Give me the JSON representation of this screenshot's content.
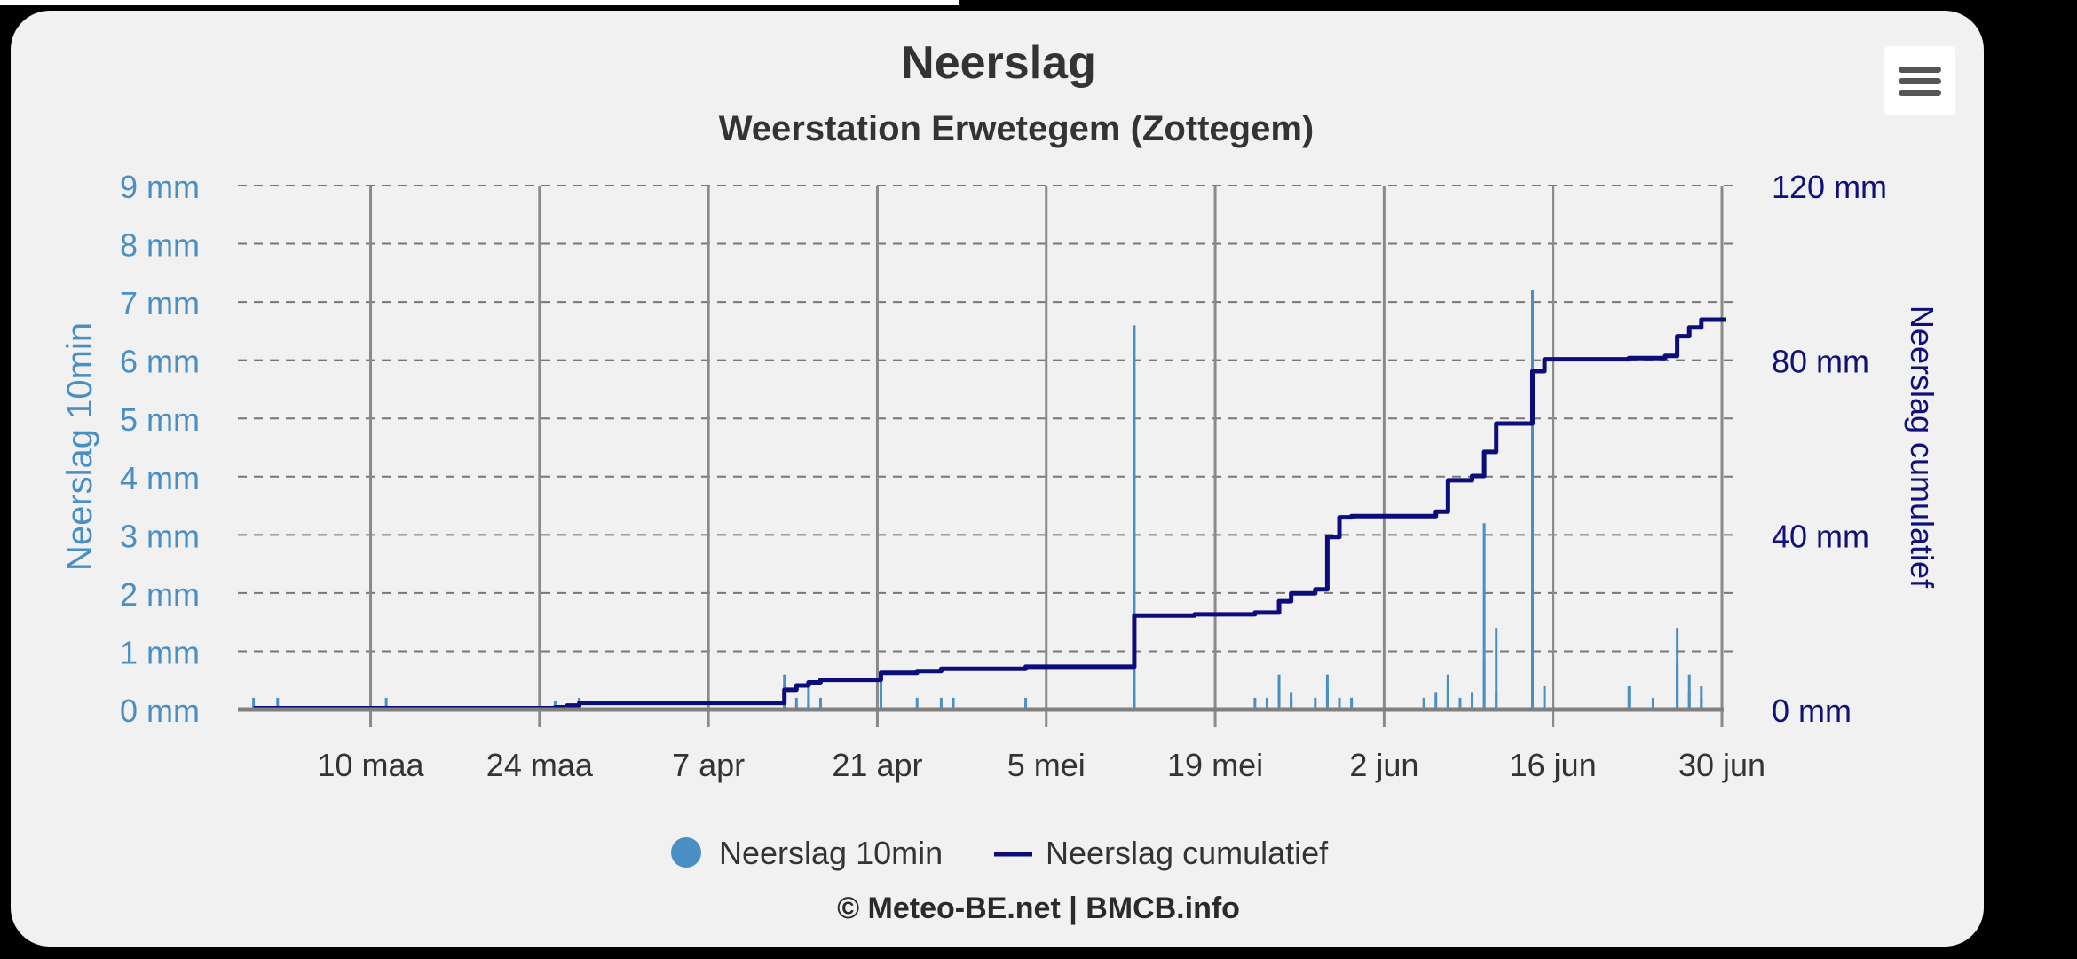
{
  "menu": {
    "icon": "hamburger-menu-icon"
  },
  "footer": {
    "credit": "© Meteo-BE.net | BMCB.info"
  },
  "chart_data": {
    "type": "bar+line",
    "title": "Neerslag",
    "subtitle": "Weerstation Erwetegem (Zottegem)",
    "x_axis": {
      "type": "datetime",
      "range": [
        "2025-02-27",
        "2025-06-30"
      ],
      "ticks": [
        {
          "label": "10 maa",
          "date": "2025-03-10"
        },
        {
          "label": "24 maa",
          "date": "2025-03-24"
        },
        {
          "label": "7 apr",
          "date": "2025-04-07"
        },
        {
          "label": "21 apr",
          "date": "2025-04-21"
        },
        {
          "label": "5 mei",
          "date": "2025-05-05"
        },
        {
          "label": "19 mei",
          "date": "2025-05-19"
        },
        {
          "label": "2 jun",
          "date": "2025-06-02"
        },
        {
          "label": "16 jun",
          "date": "2025-06-16"
        },
        {
          "label": "30 jun",
          "date": "2025-06-30"
        }
      ],
      "grid": true
    },
    "y_axis_left": {
      "label": "Neerslag 10min",
      "unit": "mm",
      "range": [
        0,
        9
      ],
      "ticks": [
        "0 mm",
        "1 mm",
        "2 mm",
        "3 mm",
        "4 mm",
        "5 mm",
        "6 mm",
        "7 mm",
        "8 mm",
        "9 mm"
      ],
      "color": "#4a8fc4"
    },
    "y_axis_right": {
      "label": "Neerslag cumulatief",
      "unit": "mm",
      "range": [
        0,
        120
      ],
      "ticks": [
        "0 mm",
        "40 mm",
        "80 mm",
        "120 mm"
      ],
      "color": "#10107a"
    },
    "legend": {
      "placement": "bottom-center",
      "items": [
        {
          "label": "Neerslag 10min",
          "symbol": "circle",
          "color": "#4a8fc4"
        },
        {
          "label": "Neerslag cumulatief",
          "symbol": "line",
          "color": "#0c0c7a"
        }
      ]
    },
    "series": [
      {
        "name": "Neerslag 10min",
        "type": "column",
        "color": "#4a8fc4",
        "points": [
          [
            "2025-02-28",
            0.2
          ],
          [
            "2025-03-02",
            0.2
          ],
          [
            "2025-03-11",
            0.2
          ],
          [
            "2025-03-25",
            0.15
          ],
          [
            "2025-03-26",
            0.1
          ],
          [
            "2025-03-27",
            0.2
          ],
          [
            "2025-04-13",
            0.6
          ],
          [
            "2025-04-13",
            0.3
          ],
          [
            "2025-04-14",
            0.2
          ],
          [
            "2025-04-15",
            0.4
          ],
          [
            "2025-04-15",
            0.2
          ],
          [
            "2025-04-16",
            0.2
          ],
          [
            "2025-04-21",
            0.5
          ],
          [
            "2025-04-24",
            0.2
          ],
          [
            "2025-04-26",
            0.2
          ],
          [
            "2025-04-27",
            0.2
          ],
          [
            "2025-05-03",
            0.2
          ],
          [
            "2025-05-12",
            6.6
          ],
          [
            "2025-05-12",
            0.3
          ],
          [
            "2025-05-22",
            0.2
          ],
          [
            "2025-05-23",
            0.2
          ],
          [
            "2025-05-24",
            0.6
          ],
          [
            "2025-05-25",
            0.3
          ],
          [
            "2025-05-25",
            0.2
          ],
          [
            "2025-05-27",
            0.2
          ],
          [
            "2025-05-28",
            0.4
          ],
          [
            "2025-05-28",
            0.6
          ],
          [
            "2025-05-29",
            0.2
          ],
          [
            "2025-05-30",
            0.2
          ],
          [
            "2025-06-05",
            0.2
          ],
          [
            "2025-06-06",
            0.3
          ],
          [
            "2025-06-07",
            0.6
          ],
          [
            "2025-06-07",
            0.4
          ],
          [
            "2025-06-08",
            0.2
          ],
          [
            "2025-06-09",
            0.3
          ],
          [
            "2025-06-10",
            3.2
          ],
          [
            "2025-06-10",
            0.8
          ],
          [
            "2025-06-11",
            1.4
          ],
          [
            "2025-06-11",
            0.3
          ],
          [
            "2025-06-14",
            7.2
          ],
          [
            "2025-06-14",
            0.3
          ],
          [
            "2025-06-15",
            0.4
          ],
          [
            "2025-06-22",
            0.4
          ],
          [
            "2025-06-24",
            0.2
          ],
          [
            "2025-06-26",
            1.4
          ],
          [
            "2025-06-26",
            0.8
          ],
          [
            "2025-06-27",
            0.6
          ],
          [
            "2025-06-27",
            0.3
          ],
          [
            "2025-06-28",
            0.4
          ],
          [
            "2025-06-28",
            0.2
          ]
        ]
      },
      {
        "name": "Neerslag cumulatief",
        "type": "line",
        "color": "#0c0c7a",
        "points": [
          [
            "2025-02-28",
            0.3
          ],
          [
            "2025-03-25",
            0.5
          ],
          [
            "2025-03-26",
            0.9
          ],
          [
            "2025-03-27",
            1.5
          ],
          [
            "2025-04-13",
            2.1
          ],
          [
            "2025-04-13",
            4.5
          ],
          [
            "2025-04-14",
            5.5
          ],
          [
            "2025-04-15",
            6.2
          ],
          [
            "2025-04-16",
            6.8
          ],
          [
            "2025-04-21",
            7.2
          ],
          [
            "2025-04-21",
            8.4
          ],
          [
            "2025-04-24",
            8.8
          ],
          [
            "2025-04-26",
            9.3
          ],
          [
            "2025-05-03",
            9.8
          ],
          [
            "2025-05-12",
            10.0
          ],
          [
            "2025-05-12",
            21.5
          ],
          [
            "2025-05-17",
            21.8
          ],
          [
            "2025-05-22",
            22.2
          ],
          [
            "2025-05-24",
            24.8
          ],
          [
            "2025-05-25",
            26.6
          ],
          [
            "2025-05-27",
            27.5
          ],
          [
            "2025-05-28",
            28.6
          ],
          [
            "2025-05-28",
            39.5
          ],
          [
            "2025-05-29",
            44.0
          ],
          [
            "2025-05-30",
            44.3
          ],
          [
            "2025-06-06",
            45.3
          ],
          [
            "2025-06-07",
            52.5
          ],
          [
            "2025-06-09",
            53.5
          ],
          [
            "2025-06-10",
            58.0
          ],
          [
            "2025-06-10",
            59.0
          ],
          [
            "2025-06-11",
            65.5
          ],
          [
            "2025-06-14",
            66.0
          ],
          [
            "2025-06-14",
            77.5
          ],
          [
            "2025-06-15",
            80.2
          ],
          [
            "2025-06-22",
            80.5
          ],
          [
            "2025-06-25",
            81.0
          ],
          [
            "2025-06-26",
            82.0
          ],
          [
            "2025-06-26",
            85.5
          ],
          [
            "2025-06-27",
            87.5
          ],
          [
            "2025-06-28",
            89.3
          ],
          [
            "2025-06-30",
            89.3
          ]
        ]
      }
    ]
  }
}
